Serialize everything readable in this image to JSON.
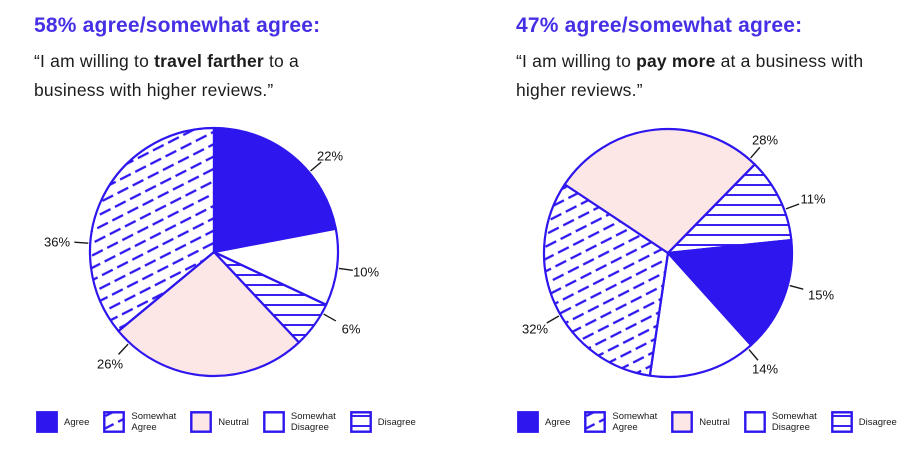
{
  "accent_colors": {
    "pie_blue": "#2e16ef",
    "title_blue": "#4630e6",
    "pink": "#fce7e6",
    "text_dark": "#1c1c1c"
  },
  "panels": [
    {
      "headline": "58% agree/somewhat agree:",
      "quote_pre": "“I am willing to ",
      "quote_bold": "travel farther",
      "quote_post": " to a business with higher reviews.”"
    },
    {
      "headline": "47% agree/somewhat agree:",
      "quote_pre": "“I am willing to ",
      "quote_bold": "pay more",
      "quote_post": " at a business with higher reviews.”"
    }
  ],
  "chart_data": [
    {
      "type": "pie",
      "title": "58% agree/somewhat agree — travel farther",
      "start_angle": 90,
      "direction": "clockwise",
      "legend_position": "bottom",
      "slices": [
        {
          "label": "Agree",
          "value": 22,
          "pct_label": "22%",
          "pattern": "solid-blue",
          "label_angle": 40
        },
        {
          "label": "Somewhat Disagree",
          "value": 10,
          "pct_label": "10%",
          "pattern": "white",
          "label_angle": -7.5
        },
        {
          "label": "Disagree",
          "value": 6,
          "pct_label": "6%",
          "pattern": "horizontal-lines",
          "label_angle": -29.5
        },
        {
          "label": "Neutral",
          "value": 26,
          "pct_label": "26%",
          "pattern": "pink",
          "label_angle": -133
        },
        {
          "label": "Somewhat Agree",
          "value": 36,
          "pct_label": "36%",
          "pattern": "diagonal-hatch",
          "label_angle": 176
        }
      ]
    },
    {
      "type": "pie",
      "title": "47% agree/somewhat agree — pay more",
      "start_angle": 6,
      "direction": "clockwise",
      "legend_position": "bottom",
      "slices": [
        {
          "label": "Agree",
          "value": 15,
          "pct_label": "15%",
          "pattern": "solid-blue",
          "label_angle": -15
        },
        {
          "label": "Somewhat Disagree",
          "value": 14,
          "pct_label": "14%",
          "pattern": "white",
          "label_angle": -50
        },
        {
          "label": "Somewhat Agree",
          "value": 32,
          "pct_label": "32%",
          "pattern": "diagonal-hatch",
          "label_angle": -150
        },
        {
          "label": "Neutral",
          "value": 28,
          "pct_label": "28%",
          "pattern": "pink",
          "label_angle": 49
        },
        {
          "label": "Disagree",
          "value": 11,
          "pct_label": "11%",
          "pattern": "horizontal-lines",
          "label_angle": 20.5
        }
      ]
    }
  ],
  "legend": {
    "items": [
      {
        "key": "agree",
        "label": "Agree",
        "swatch": "solid-blue"
      },
      {
        "key": "somewhat-agree",
        "label": "Somewhat\nAgree",
        "swatch": "diagonal-hatch"
      },
      {
        "key": "neutral",
        "label": "Neutral",
        "swatch": "pink"
      },
      {
        "key": "somewhat-disagree",
        "label": "Somewhat\nDisagree",
        "swatch": "white"
      },
      {
        "key": "disagree",
        "label": "Disagree",
        "swatch": "horizontal-lines"
      }
    ]
  }
}
